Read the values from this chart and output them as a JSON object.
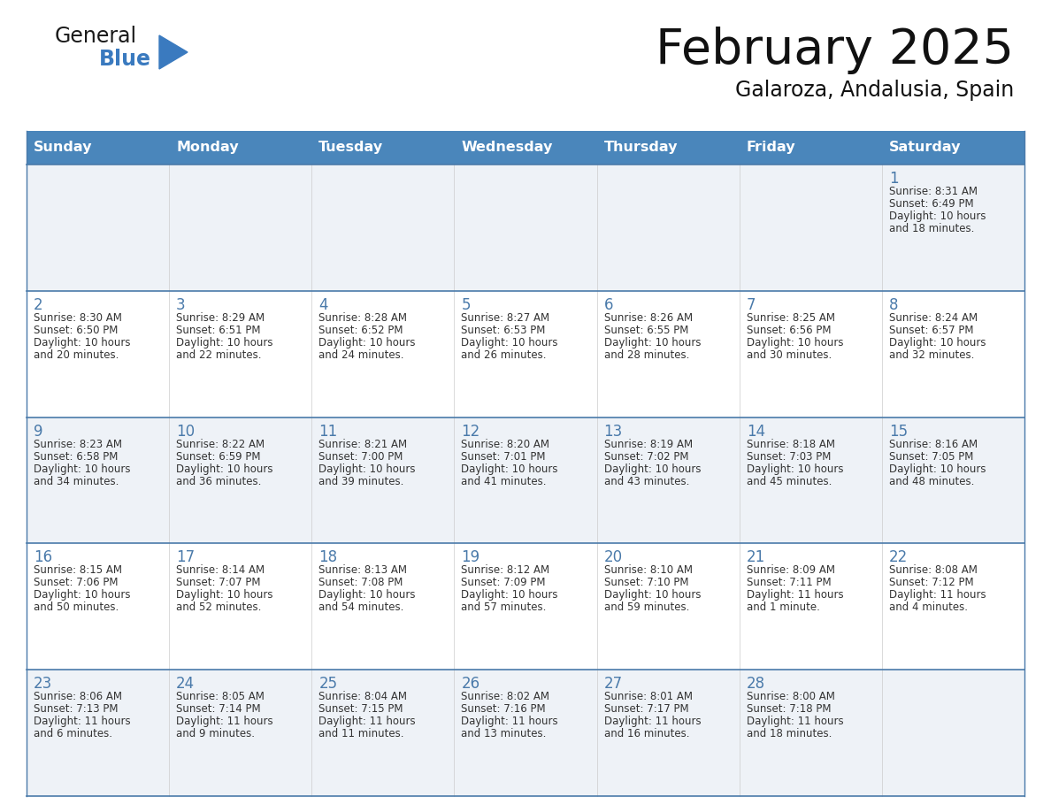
{
  "title": "February 2025",
  "subtitle": "Galaroza, Andalusia, Spain",
  "header_color": "#4a86bb",
  "header_text_color": "#ffffff",
  "cell_bg_light": "#eef2f7",
  "cell_bg_white": "#ffffff",
  "border_color": "#4a7aaa",
  "day_number_color": "#4a7aaa",
  "text_color": "#333333",
  "days_of_week": [
    "Sunday",
    "Monday",
    "Tuesday",
    "Wednesday",
    "Thursday",
    "Friday",
    "Saturday"
  ],
  "calendar_data": [
    [
      null,
      null,
      null,
      null,
      null,
      null,
      {
        "day": 1,
        "sunrise": "8:31 AM",
        "sunset": "6:49 PM",
        "daylight": "10 hours",
        "daylight2": "and 18 minutes."
      }
    ],
    [
      {
        "day": 2,
        "sunrise": "8:30 AM",
        "sunset": "6:50 PM",
        "daylight": "10 hours",
        "daylight2": "and 20 minutes."
      },
      {
        "day": 3,
        "sunrise": "8:29 AM",
        "sunset": "6:51 PM",
        "daylight": "10 hours",
        "daylight2": "and 22 minutes."
      },
      {
        "day": 4,
        "sunrise": "8:28 AM",
        "sunset": "6:52 PM",
        "daylight": "10 hours",
        "daylight2": "and 24 minutes."
      },
      {
        "day": 5,
        "sunrise": "8:27 AM",
        "sunset": "6:53 PM",
        "daylight": "10 hours",
        "daylight2": "and 26 minutes."
      },
      {
        "day": 6,
        "sunrise": "8:26 AM",
        "sunset": "6:55 PM",
        "daylight": "10 hours",
        "daylight2": "and 28 minutes."
      },
      {
        "day": 7,
        "sunrise": "8:25 AM",
        "sunset": "6:56 PM",
        "daylight": "10 hours",
        "daylight2": "and 30 minutes."
      },
      {
        "day": 8,
        "sunrise": "8:24 AM",
        "sunset": "6:57 PM",
        "daylight": "10 hours",
        "daylight2": "and 32 minutes."
      }
    ],
    [
      {
        "day": 9,
        "sunrise": "8:23 AM",
        "sunset": "6:58 PM",
        "daylight": "10 hours",
        "daylight2": "and 34 minutes."
      },
      {
        "day": 10,
        "sunrise": "8:22 AM",
        "sunset": "6:59 PM",
        "daylight": "10 hours",
        "daylight2": "and 36 minutes."
      },
      {
        "day": 11,
        "sunrise": "8:21 AM",
        "sunset": "7:00 PM",
        "daylight": "10 hours",
        "daylight2": "and 39 minutes."
      },
      {
        "day": 12,
        "sunrise": "8:20 AM",
        "sunset": "7:01 PM",
        "daylight": "10 hours",
        "daylight2": "and 41 minutes."
      },
      {
        "day": 13,
        "sunrise": "8:19 AM",
        "sunset": "7:02 PM",
        "daylight": "10 hours",
        "daylight2": "and 43 minutes."
      },
      {
        "day": 14,
        "sunrise": "8:18 AM",
        "sunset": "7:03 PM",
        "daylight": "10 hours",
        "daylight2": "and 45 minutes."
      },
      {
        "day": 15,
        "sunrise": "8:16 AM",
        "sunset": "7:05 PM",
        "daylight": "10 hours",
        "daylight2": "and 48 minutes."
      }
    ],
    [
      {
        "day": 16,
        "sunrise": "8:15 AM",
        "sunset": "7:06 PM",
        "daylight": "10 hours",
        "daylight2": "and 50 minutes."
      },
      {
        "day": 17,
        "sunrise": "8:14 AM",
        "sunset": "7:07 PM",
        "daylight": "10 hours",
        "daylight2": "and 52 minutes."
      },
      {
        "day": 18,
        "sunrise": "8:13 AM",
        "sunset": "7:08 PM",
        "daylight": "10 hours",
        "daylight2": "and 54 minutes."
      },
      {
        "day": 19,
        "sunrise": "8:12 AM",
        "sunset": "7:09 PM",
        "daylight": "10 hours",
        "daylight2": "and 57 minutes."
      },
      {
        "day": 20,
        "sunrise": "8:10 AM",
        "sunset": "7:10 PM",
        "daylight": "10 hours",
        "daylight2": "and 59 minutes."
      },
      {
        "day": 21,
        "sunrise": "8:09 AM",
        "sunset": "7:11 PM",
        "daylight": "11 hours",
        "daylight2": "and 1 minute."
      },
      {
        "day": 22,
        "sunrise": "8:08 AM",
        "sunset": "7:12 PM",
        "daylight": "11 hours",
        "daylight2": "and 4 minutes."
      }
    ],
    [
      {
        "day": 23,
        "sunrise": "8:06 AM",
        "sunset": "7:13 PM",
        "daylight": "11 hours",
        "daylight2": "and 6 minutes."
      },
      {
        "day": 24,
        "sunrise": "8:05 AM",
        "sunset": "7:14 PM",
        "daylight": "11 hours",
        "daylight2": "and 9 minutes."
      },
      {
        "day": 25,
        "sunrise": "8:04 AM",
        "sunset": "7:15 PM",
        "daylight": "11 hours",
        "daylight2": "and 11 minutes."
      },
      {
        "day": 26,
        "sunrise": "8:02 AM",
        "sunset": "7:16 PM",
        "daylight": "11 hours",
        "daylight2": "and 13 minutes."
      },
      {
        "day": 27,
        "sunrise": "8:01 AM",
        "sunset": "7:17 PM",
        "daylight": "11 hours",
        "daylight2": "and 16 minutes."
      },
      {
        "day": 28,
        "sunrise": "8:00 AM",
        "sunset": "7:18 PM",
        "daylight": "11 hours",
        "daylight2": "and 18 minutes."
      },
      null
    ]
  ],
  "logo_color_general": "#1a1a1a",
  "logo_color_blue": "#3a7abf",
  "logo_triangle_color": "#3a7abf"
}
